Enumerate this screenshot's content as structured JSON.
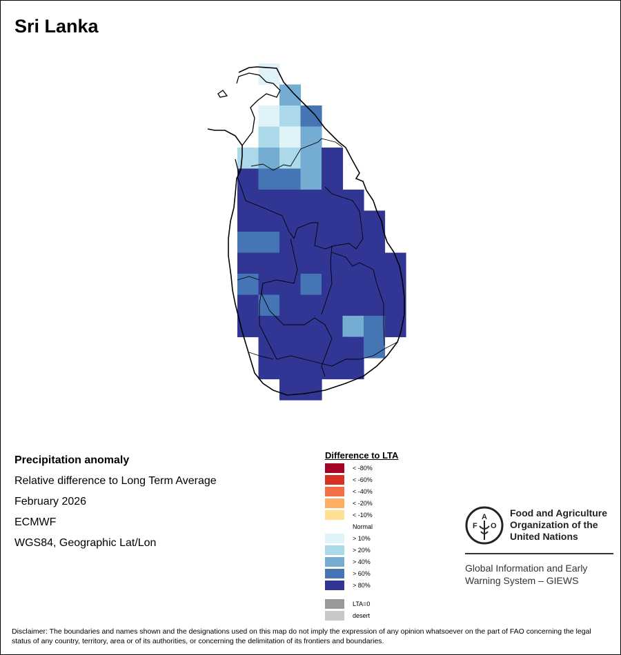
{
  "title": "Sri Lanka",
  "info": {
    "heading": "Precipitation anomaly",
    "subtitle": "Relative difference to Long Term Average",
    "period": "February 2026",
    "source": "ECMWF",
    "projection": "WGS84, Geographic Lat/Lon"
  },
  "legend": {
    "title": "Difference to LTA",
    "items": [
      {
        "label": "< -80%",
        "color": "#a50026"
      },
      {
        "label": "< -60%",
        "color": "#d73027"
      },
      {
        "label": "< -40%",
        "color": "#f46d43"
      },
      {
        "label": "< -20%",
        "color": "#fdae61"
      },
      {
        "label": "< -10%",
        "color": "#fee090"
      },
      {
        "label": "Normal",
        "color": "#ffffff"
      },
      {
        "label": "> 10%",
        "color": "#e0f3f8"
      },
      {
        "label": "> 20%",
        "color": "#abd9e9"
      },
      {
        "label": "> 40%",
        "color": "#74add1"
      },
      {
        "label": "> 60%",
        "color": "#4575b4"
      },
      {
        "label": "> 80%",
        "color": "#313695"
      }
    ],
    "extra": [
      {
        "label": "LTA=0",
        "color": "#999999"
      },
      {
        "label": "desert",
        "color": "#c8c8c8"
      }
    ]
  },
  "anomaly_grid": {
    "levels": [
      "none",
      "> 10%",
      "> 20%",
      "> 40%",
      "> 60%",
      "> 80%"
    ],
    "rows": [
      [
        0,
        1,
        0,
        0,
        0,
        0,
        0,
        0
      ],
      [
        0,
        0,
        3,
        0,
        0,
        0,
        0,
        0
      ],
      [
        0,
        1,
        2,
        4,
        0,
        0,
        0,
        0
      ],
      [
        0,
        2,
        1,
        3,
        0,
        0,
        0,
        0
      ],
      [
        2,
        3,
        2,
        3,
        5,
        0,
        0,
        0
      ],
      [
        5,
        4,
        4,
        3,
        5,
        0,
        0,
        0
      ],
      [
        5,
        5,
        5,
        5,
        5,
        5,
        0,
        0
      ],
      [
        5,
        5,
        5,
        5,
        5,
        5,
        5,
        0
      ],
      [
        4,
        4,
        5,
        5,
        5,
        5,
        5,
        0
      ],
      [
        5,
        5,
        5,
        5,
        5,
        5,
        5,
        5
      ],
      [
        4,
        5,
        5,
        4,
        5,
        5,
        5,
        5
      ],
      [
        5,
        4,
        5,
        5,
        5,
        5,
        5,
        5
      ],
      [
        5,
        5,
        5,
        5,
        5,
        3,
        4,
        5
      ],
      [
        0,
        5,
        5,
        5,
        5,
        5,
        4,
        0
      ],
      [
        0,
        5,
        5,
        5,
        5,
        5,
        0,
        0
      ],
      [
        0,
        0,
        5,
        5,
        0,
        0,
        0,
        0
      ]
    ]
  },
  "logo": {
    "org": [
      "Food and Agriculture",
      "Organization of the",
      "United Nations"
    ],
    "seal_text": "FAO FIAT PANIS",
    "system": [
      "Global Information and Early",
      "Warning System – GIEWS"
    ]
  },
  "disclaimer": "Disclaimer: The boundaries and names shown and the designations used on this map do not imply the expression of any opinion whatsoever on the part of FAO concerning the legal status of any country, territory, area or of its authorities, or concerning the delimitation of its frontiers and boundaries."
}
